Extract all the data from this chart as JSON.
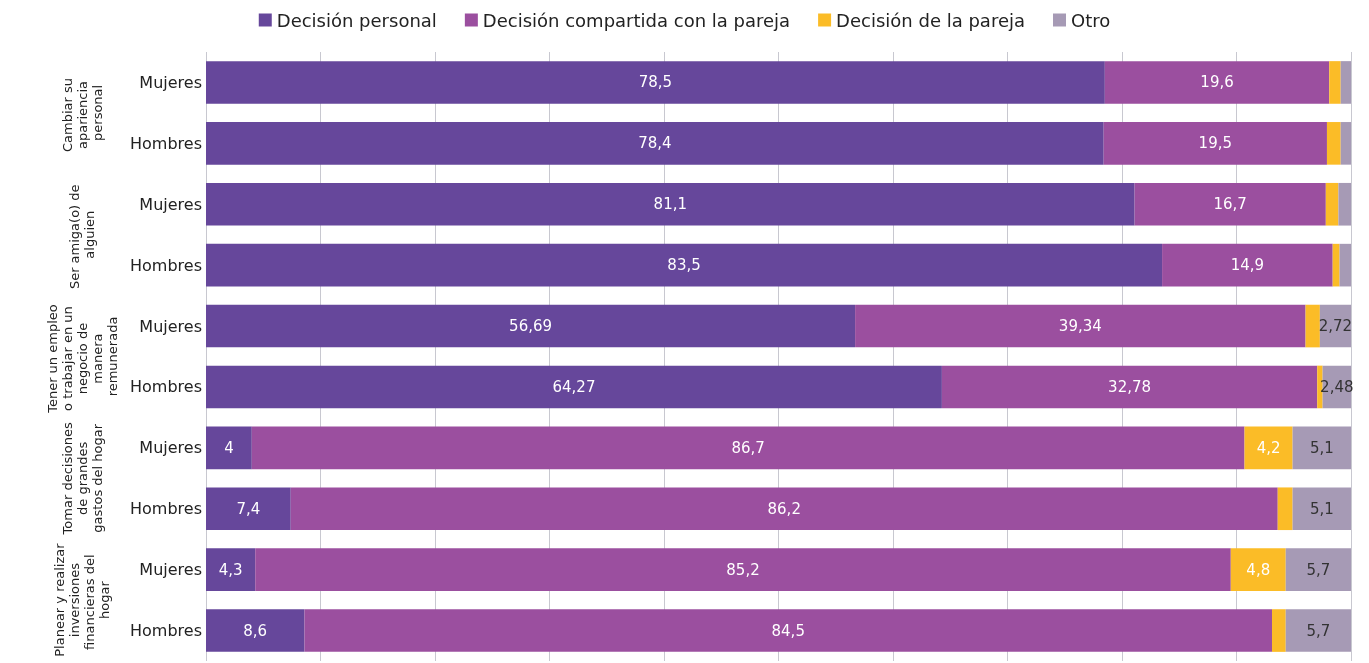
{
  "chart_data": {
    "type": "bar",
    "orientation": "horizontal",
    "stacked": true,
    "legend": "top",
    "grid": "x",
    "tick_labels": "y",
    "categories": [
      "Mujeres",
      "Hombres",
      "Mujeres",
      "Hombres",
      "Mujeres",
      "Hombres",
      "Mujeres",
      "Hombres",
      "Mujeres",
      "Hombres"
    ],
    "annotations": [
      "Cambiar su apariencia personal",
      "Ser amiga(o) de alguien",
      "Tener un empleo o trabajar en un negocio de manera remunerada",
      "Tomar decisiones de grandes gastos del hogar",
      "Planear y realizar inversiones financieras del hogar"
    ],
    "xlim": [
      0,
      100
    ],
    "xticks": [
      {
        "value": 0,
        "label": null
      },
      {
        "value": 10,
        "label": null
      },
      {
        "value": 20,
        "label": null
      },
      {
        "value": 30,
        "label": null
      },
      {
        "value": 40,
        "label": null
      },
      {
        "value": 50,
        "label": null
      },
      {
        "value": 60,
        "label": null
      },
      {
        "value": 70,
        "label": null
      },
      {
        "value": 80,
        "label": null
      },
      {
        "value": 90,
        "label": null
      },
      {
        "value": 100,
        "label": null
      }
    ],
    "series": [
      {
        "name": "Decisión personal",
        "color": "#66479b",
        "values": [
          78.5,
          78.4,
          81.1,
          83.5,
          56.69,
          64.27,
          4,
          7.4,
          4.3,
          8.6
        ],
        "value_labels": [
          "78,5",
          "78,4",
          "81,1",
          "83,5",
          "56,69",
          "64,27",
          "4",
          "7,4",
          "4,3",
          "8,6"
        ]
      },
      {
        "name": "Decisión compartida con la pareja",
        "color": "#9b4f9f",
        "values": [
          19.6,
          19.5,
          16.7,
          14.9,
          39.34,
          32.78,
          86.7,
          86.2,
          85.2,
          84.5
        ],
        "value_labels": [
          "19,6",
          "19,5",
          "16,7",
          "14,9",
          "39,34",
          "32,78",
          "86,7",
          "86,2",
          "85,2",
          "84,5"
        ]
      },
      {
        "name": "Decisión de la pareja",
        "color": "#fbbc27",
        "values": [
          1.0,
          1.2,
          1.1,
          0.6,
          1.25,
          0.47,
          4.2,
          1.3,
          4.8,
          1.2
        ],
        "value_labels": [
          null,
          null,
          null,
          null,
          null,
          null,
          "4,2",
          null,
          "4,8",
          null
        ]
      },
      {
        "name": "Otro",
        "color": "#a69ab5",
        "values": [
          0.9,
          0.9,
          1.1,
          1.0,
          2.72,
          2.48,
          5.1,
          5.1,
          5.7,
          5.7
        ],
        "value_labels": [
          null,
          null,
          null,
          null,
          "2,72",
          "2,48",
          "5,1",
          "5,1",
          "5,7",
          "5,7"
        ]
      }
    ]
  }
}
